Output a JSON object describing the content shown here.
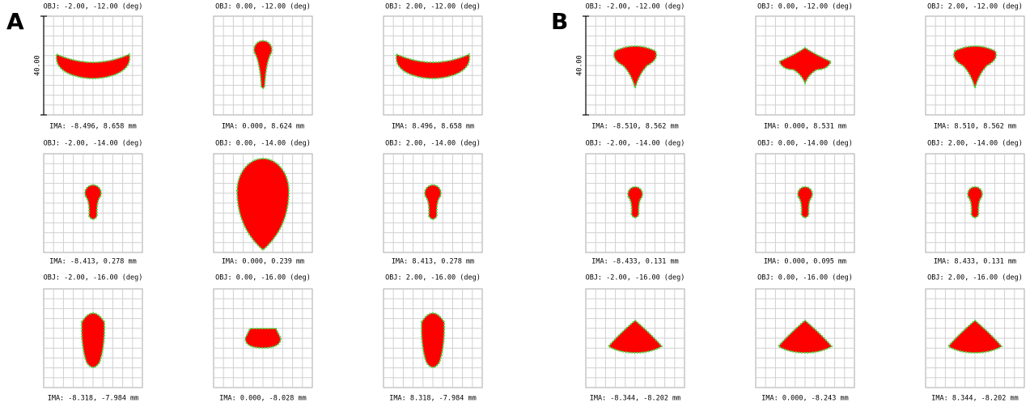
{
  "panels": [
    {
      "label": "A",
      "scale": "40.00",
      "cells": [
        {
          "obj": "OBJ: -2.00, -12.00 (deg)",
          "ima": "IMA: -8.496, 8.658 mm"
        },
        {
          "obj": "OBJ: 0.00, -12.00 (deg)",
          "ima": "IMA: 0.000, 8.624 mm"
        },
        {
          "obj": "OBJ: 2.00, -12.00 (deg)",
          "ima": "IMA: 8.496, 8.658 mm"
        },
        {
          "obj": "OBJ: -2.00, -14.00 (deg)",
          "ima": "IMA: -8.413, 0.278 mm"
        },
        {
          "obj": "OBJ: 0.00, -14.00 (deg)",
          "ima": "IMA: 0.000, 0.239 mm"
        },
        {
          "obj": "OBJ: 2.00, -14.00 (deg)",
          "ima": "IMA: 8.413, 0.278 mm"
        },
        {
          "obj": "OBJ: -2.00, -16.00 (deg)",
          "ima": "IMA: -8.318, -7.984 mm"
        },
        {
          "obj": "OBJ: 0.00, -16.00 (deg)",
          "ima": "IMA: 0.000, -8.028 mm"
        },
        {
          "obj": "OBJ: 2.00, -16.00 (deg)",
          "ima": "IMA: 8.318, -7.984 mm"
        }
      ]
    },
    {
      "label": "B",
      "scale": "40.00",
      "cells": [
        {
          "obj": "OBJ: -2.00, -12.00 (deg)",
          "ima": "IMA: -8.510, 8.562 mm"
        },
        {
          "obj": "OBJ: 0.00, -12.00 (deg)",
          "ima": "IMA: 0.000, 8.531 mm"
        },
        {
          "obj": "OBJ: 2.00, -12.00 (deg)",
          "ima": "IMA: 8.510, 8.562 mm"
        },
        {
          "obj": "OBJ: -2.00, -14.00 (deg)",
          "ima": "IMA: -8.433, 0.131 mm"
        },
        {
          "obj": "OBJ: 0.00, -14.00 (deg)",
          "ima": "IMA: 0.000, 0.095 mm"
        },
        {
          "obj": "OBJ: 2.00, -14.00 (deg)",
          "ima": "IMA: 8.433, 0.131 mm"
        },
        {
          "obj": "OBJ: -2.00, -16.00 (deg)",
          "ima": "IMA: -8.344, -8.202 mm"
        },
        {
          "obj": "OBJ: 0.00, -16.00 (deg)",
          "ima": "IMA: 0.000, -8.243 mm"
        },
        {
          "obj": "OBJ: 2.00, -16.00 (deg)",
          "ima": "IMA: 8.344, -8.202 mm"
        }
      ]
    }
  ]
}
